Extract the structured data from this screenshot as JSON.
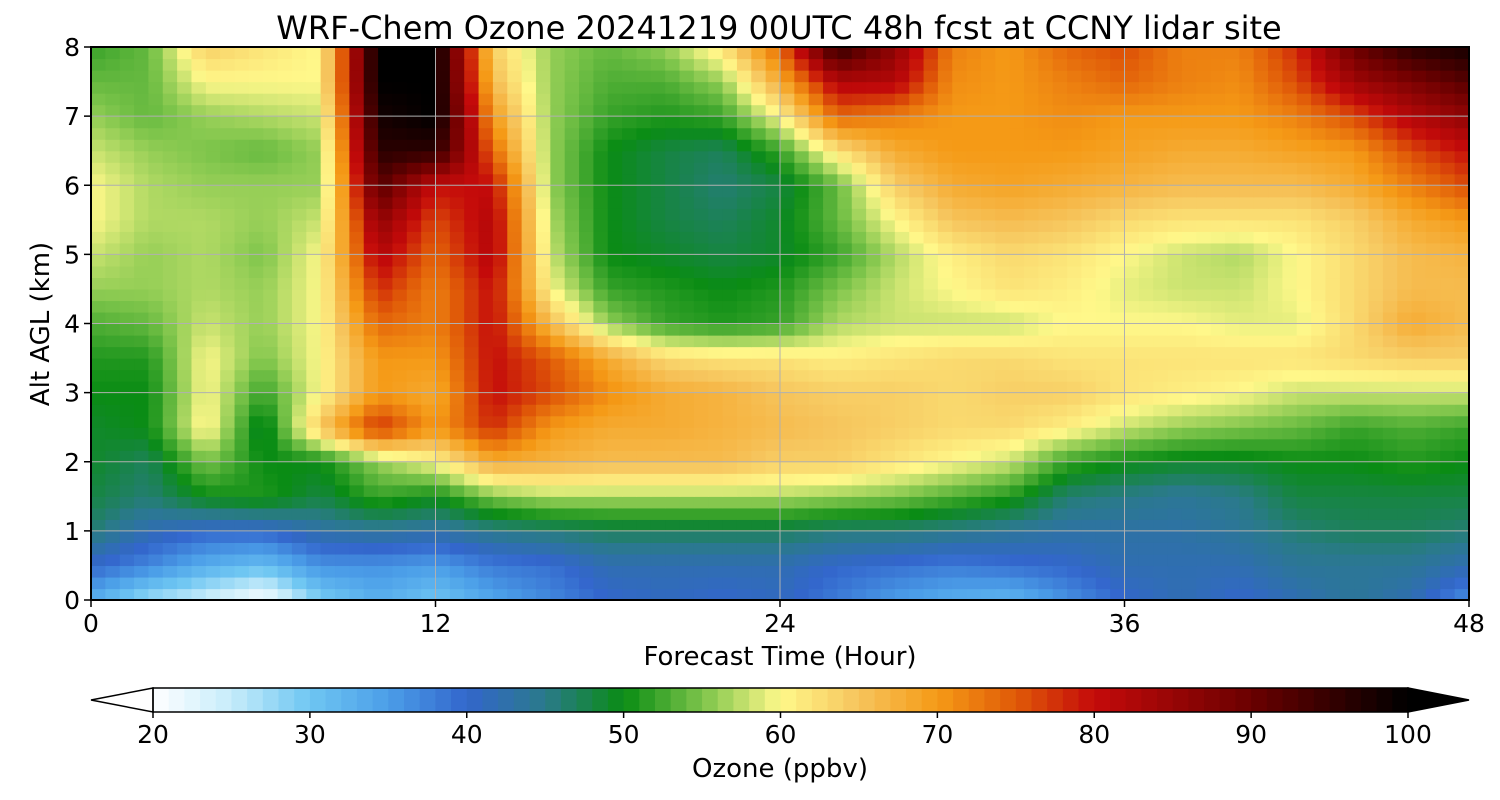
{
  "chart_data": {
    "type": "heatmap",
    "title": "WRF-Chem Ozone  20241219 00UTC 48h fcst at CCNY lidar site",
    "xlabel": "Forecast Time (Hour)",
    "ylabel": "Alt AGL (km)",
    "xlim": [
      0,
      48
    ],
    "ylim": [
      0,
      8
    ],
    "x_ticks": [
      "0",
      "12",
      "24",
      "36",
      "48"
    ],
    "x_tick_values": [
      0,
      12,
      24,
      36,
      48
    ],
    "y_ticks": [
      "0",
      "1",
      "2",
      "3",
      "4",
      "5",
      "6",
      "7",
      "8"
    ],
    "y_tick_values": [
      0,
      1,
      2,
      3,
      4,
      5,
      6,
      7,
      8
    ],
    "grid": true,
    "colorbar": {
      "label": "Ozone  (ppbv)",
      "range": [
        20,
        100
      ],
      "ticks": [
        "20",
        "30",
        "40",
        "50",
        "60",
        "70",
        "80",
        "90",
        "100"
      ],
      "tick_values": [
        20,
        30,
        40,
        50,
        60,
        70,
        80,
        90,
        100
      ],
      "extend": "both",
      "color_stops": [
        {
          "v": 20,
          "c": "#ffffff"
        },
        {
          "v": 25,
          "c": "#c6ecfa"
        },
        {
          "v": 30,
          "c": "#6ec6f2"
        },
        {
          "v": 35,
          "c": "#4b9ee8"
        },
        {
          "v": 40,
          "c": "#3366cc"
        },
        {
          "v": 45,
          "c": "#2a7a8a"
        },
        {
          "v": 50,
          "c": "#0a8c14"
        },
        {
          "v": 55,
          "c": "#7cc44a"
        },
        {
          "v": 60,
          "c": "#fff88a"
        },
        {
          "v": 65,
          "c": "#f6c45c"
        },
        {
          "v": 70,
          "c": "#f59a16"
        },
        {
          "v": 75,
          "c": "#e05a08"
        },
        {
          "v": 80,
          "c": "#c40a0a"
        },
        {
          "v": 90,
          "c": "#6a0000"
        },
        {
          "v": 100,
          "c": "#000000"
        }
      ]
    },
    "x": [
      0,
      2,
      4,
      6,
      8,
      10,
      12,
      14,
      16,
      18,
      20,
      22,
      24,
      26,
      28,
      30,
      32,
      34,
      36,
      38,
      40,
      42,
      44,
      46,
      48
    ],
    "y": [
      0,
      0.5,
      1,
      1.5,
      2,
      2.5,
      3,
      3.5,
      4,
      4.5,
      5,
      5.5,
      6,
      6.5,
      7,
      7.5,
      8
    ],
    "z": [
      [
        33,
        27,
        24,
        20,
        29,
        33,
        30,
        34,
        37,
        40,
        41,
        40,
        41,
        38,
        35,
        33,
        32,
        36,
        40,
        42,
        40,
        42,
        44,
        42,
        36
      ],
      [
        40,
        37,
        33,
        31,
        36,
        36,
        35,
        38,
        39,
        42,
        42,
        42,
        42,
        40,
        39,
        38,
        39,
        40,
        42,
        42,
        42,
        44,
        44,
        44,
        42
      ],
      [
        46,
        42,
        40,
        40,
        43,
        44,
        43,
        45,
        46,
        47,
        47,
        47,
        47,
        46,
        46,
        45,
        44,
        43,
        43,
        43,
        44,
        46,
        47,
        47,
        46
      ],
      [
        48,
        46,
        50,
        51,
        48,
        52,
        50,
        55,
        57,
        57,
        57,
        57,
        57,
        56,
        55,
        53,
        51,
        46,
        45,
        44,
        45,
        48,
        48,
        48,
        48
      ],
      [
        49,
        47,
        55,
        50,
        50,
        56,
        60,
        68,
        67,
        66,
        66,
        66,
        64,
        64,
        62,
        60,
        58,
        52,
        50,
        49,
        49,
        50,
        50,
        51,
        50
      ],
      [
        49,
        50,
        61,
        48,
        65,
        78,
        70,
        78,
        70,
        68,
        68,
        67,
        66,
        65,
        64,
        63,
        63,
        61,
        58,
        56,
        55,
        54,
        52,
        53,
        52
      ],
      [
        50,
        50,
        60,
        52,
        60,
        70,
        68,
        80,
        76,
        71,
        68,
        67,
        65,
        64,
        64,
        63,
        64,
        64,
        62,
        61,
        60,
        58,
        58,
        58,
        58
      ],
      [
        51,
        51,
        60,
        55,
        60,
        70,
        70,
        80,
        75,
        68,
        63,
        62,
        62,
        61,
        62,
        63,
        63,
        62,
        62,
        62,
        62,
        62,
        63,
        64,
        64
      ],
      [
        53,
        54,
        58,
        56,
        60,
        74,
        72,
        80,
        66,
        56,
        52,
        51,
        52,
        57,
        58,
        58,
        58,
        60,
        60,
        60,
        59,
        59,
        63,
        68,
        66
      ],
      [
        56,
        56,
        57,
        56,
        60,
        78,
        72,
        80,
        60,
        52,
        51,
        50,
        51,
        55,
        58,
        60,
        62,
        61,
        59,
        58,
        58,
        60,
        63,
        66,
        66
      ],
      [
        58,
        56,
        57,
        55,
        60,
        82,
        74,
        82,
        58,
        50,
        49,
        48,
        49,
        52,
        57,
        61,
        63,
        62,
        60,
        58,
        57,
        60,
        63,
        66,
        67
      ],
      [
        60,
        57,
        57,
        56,
        58,
        86,
        76,
        82,
        57,
        50,
        48,
        47,
        49,
        54,
        60,
        65,
        66,
        65,
        63,
        62,
        62,
        62,
        64,
        68,
        70
      ],
      [
        60,
        57,
        56,
        56,
        56,
        92,
        80,
        80,
        56,
        50,
        48,
        46,
        48,
        54,
        64,
        68,
        69,
        68,
        67,
        66,
        66,
        66,
        68,
        72,
        76
      ],
      [
        58,
        56,
        55,
        54,
        56,
        96,
        96,
        74,
        56,
        50,
        48,
        47,
        52,
        62,
        68,
        70,
        70,
        70,
        69,
        68,
        68,
        69,
        70,
        76,
        80
      ],
      [
        56,
        54,
        56,
        57,
        58,
        98,
        100,
        70,
        56,
        52,
        51,
        52,
        60,
        74,
        72,
        70,
        70,
        71,
        70,
        70,
        70,
        72,
        76,
        82,
        86
      ],
      [
        54,
        54,
        60,
        60,
        60,
        100,
        100,
        66,
        56,
        53,
        53,
        56,
        68,
        82,
        82,
        71,
        70,
        72,
        74,
        72,
        71,
        76,
        84,
        88,
        92
      ],
      [
        52,
        54,
        64,
        62,
        60,
        100,
        100,
        64,
        56,
        54,
        56,
        62,
        74,
        96,
        86,
        72,
        70,
        74,
        76,
        72,
        72,
        78,
        90,
        96,
        98
      ]
    ]
  }
}
